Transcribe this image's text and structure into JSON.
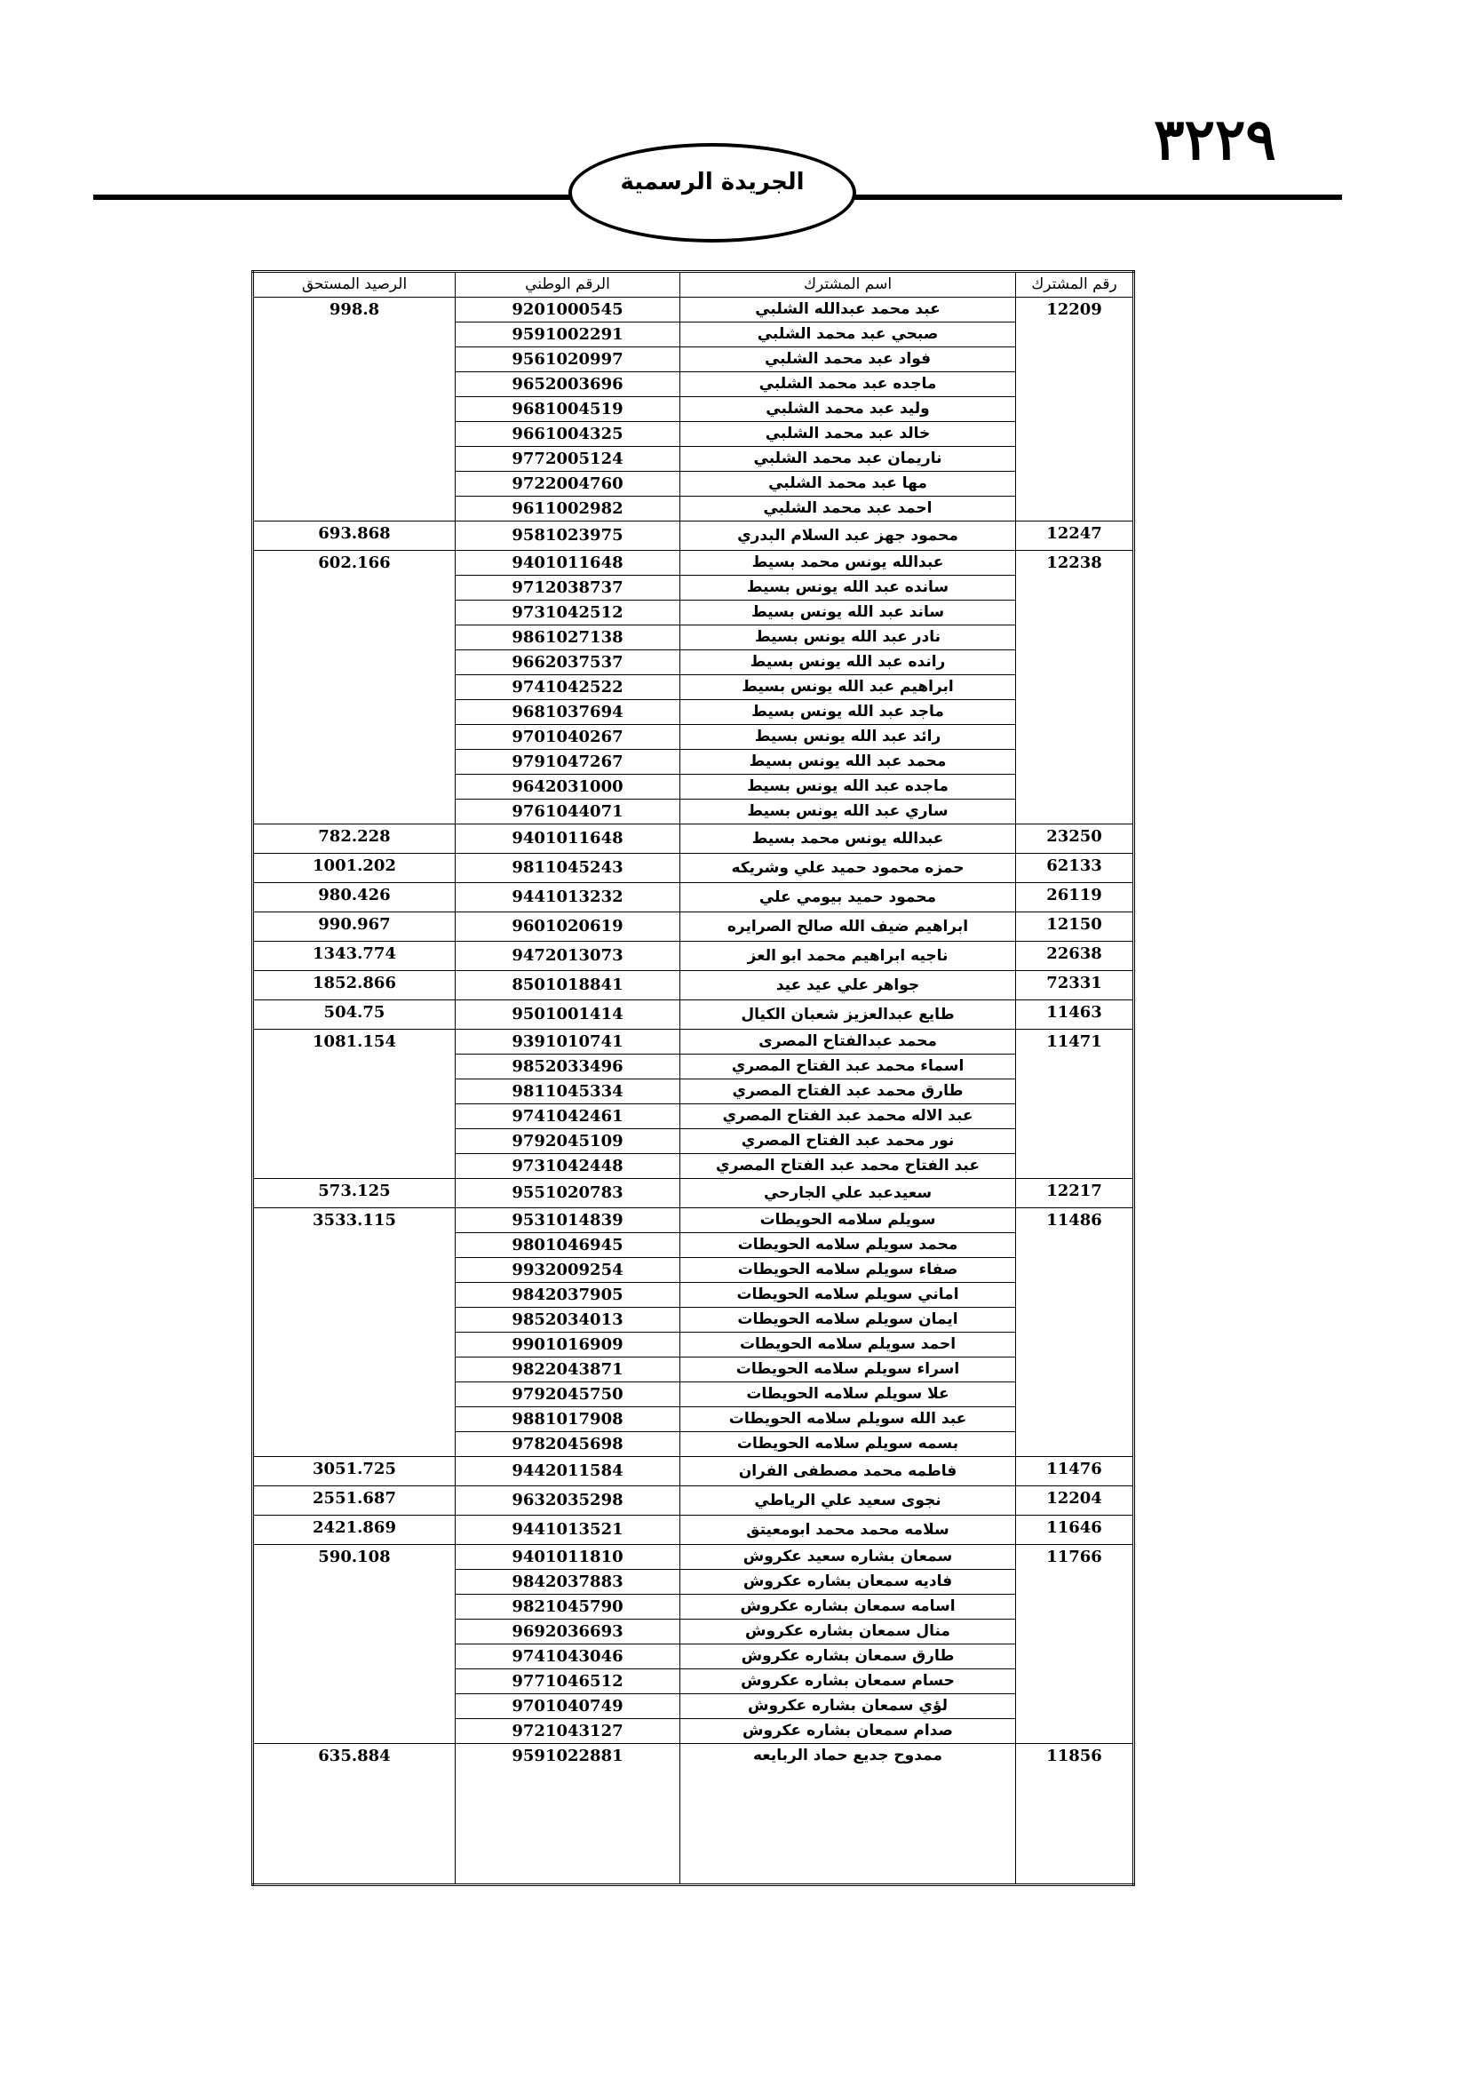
{
  "header": {
    "page_number": "٣٢٢٩",
    "title": "الجريدة الرسمية"
  },
  "table": {
    "header": [
      "رقم المشترك",
      "اسم المشترك",
      "الرقم الوطني",
      "الرصيد المستحق"
    ],
    "groups": [
      {
        "subscriber_no": "12209",
        "balance": "998.8",
        "members": [
          {
            "name": "عبد محمد عبدالله الشلبي",
            "national_id": "9201000545"
          },
          {
            "name": "صبحي عبد محمد الشلبي",
            "national_id": "9591002291"
          },
          {
            "name": "فواد عبد محمد الشلبي",
            "national_id": "9561020997"
          },
          {
            "name": "ماجده عبد محمد الشلبي",
            "national_id": "9652003696"
          },
          {
            "name": "وليد عبد محمد الشلبي",
            "national_id": "9681004519"
          },
          {
            "name": "خالد عبد محمد الشلبي",
            "national_id": "9661004325"
          },
          {
            "name": "ناريمان عبد محمد الشلبي",
            "national_id": "9772005124"
          },
          {
            "name": "مها عبد محمد الشلبي",
            "national_id": "9722004760"
          },
          {
            "name": "احمد عبد محمد الشلبي",
            "national_id": "9611002982"
          }
        ]
      },
      {
        "subscriber_no": "12247",
        "balance": "693.868",
        "members": [
          {
            "name": "محمود جهز عبد السلام البدري",
            "national_id": "9581023975"
          }
        ]
      },
      {
        "subscriber_no": "12238",
        "balance": "602.166",
        "members": [
          {
            "name": "عبدالله يونس محمد بسيط",
            "national_id": "9401011648"
          },
          {
            "name": "سانده عبد الله يونس بسيط",
            "national_id": "9712038737"
          },
          {
            "name": "ساند عبد الله يونس بسيط",
            "national_id": "9731042512"
          },
          {
            "name": "نادر عبد الله يونس بسيط",
            "national_id": "9861027138"
          },
          {
            "name": "رانده عبد الله يونس بسيط",
            "national_id": "9662037537"
          },
          {
            "name": "ابراهيم عبد الله يونس بسيط",
            "national_id": "9741042522"
          },
          {
            "name": "ماجد عبد الله يونس بسيط",
            "national_id": "9681037694"
          },
          {
            "name": "رائد عبد الله يونس بسيط",
            "national_id": "9701040267"
          },
          {
            "name": "محمد عبد الله يونس بسيط",
            "national_id": "9791047267"
          },
          {
            "name": "ماجده عبد الله يونس بسيط",
            "national_id": "9642031000"
          },
          {
            "name": "ساري عبد الله يونس بسيط",
            "national_id": "9761044071"
          }
        ]
      },
      {
        "subscriber_no": "23250",
        "balance": "782.228",
        "members": [
          {
            "name": "عبدالله يونس محمد بسيط",
            "national_id": "9401011648"
          }
        ]
      },
      {
        "subscriber_no": "62133",
        "balance": "1001.202",
        "members": [
          {
            "name": "حمزه محمود حميد علي وشريكه",
            "national_id": "9811045243"
          }
        ]
      },
      {
        "subscriber_no": "26119",
        "balance": "980.426",
        "members": [
          {
            "name": "محمود حميد بيومي علي",
            "national_id": "9441013232"
          }
        ]
      },
      {
        "subscriber_no": "12150",
        "balance": "990.967",
        "members": [
          {
            "name": "ابراهيم ضيف الله صالح الصرايره",
            "national_id": "9601020619"
          }
        ]
      },
      {
        "subscriber_no": "22638",
        "balance": "1343.774",
        "members": [
          {
            "name": "ناجيه ابراهيم محمد ابو العز",
            "national_id": "9472013073"
          }
        ]
      },
      {
        "subscriber_no": "72331",
        "balance": "1852.866",
        "members": [
          {
            "name": "جواهر علي عيد عيد",
            "national_id": "8501018841"
          }
        ]
      },
      {
        "subscriber_no": "11463",
        "balance": "504.75",
        "members": [
          {
            "name": "طايع عبدالعزيز شعبان الكيال",
            "national_id": "9501001414"
          }
        ]
      },
      {
        "subscriber_no": "11471",
        "balance": "1081.154",
        "members": [
          {
            "name": "محمد عبدالفتاح المصرى",
            "national_id": "9391010741"
          },
          {
            "name": "اسماء محمد عبد الفتاح المصري",
            "national_id": "9852033496"
          },
          {
            "name": "طارق محمد عبد الفتاح المصري",
            "national_id": "9811045334"
          },
          {
            "name": "عبد الاله محمد عبد الفتاح المصري",
            "national_id": "9741042461"
          },
          {
            "name": "نور محمد عبد الفتاح المصري",
            "national_id": "9792045109"
          },
          {
            "name": "عبد الفتاح محمد عبد الفتاح المصري",
            "national_id": "9731042448"
          }
        ]
      },
      {
        "subscriber_no": "12217",
        "balance": "573.125",
        "members": [
          {
            "name": "سعيدعبد علي الجارحي",
            "national_id": "9551020783"
          }
        ]
      },
      {
        "subscriber_no": "11486",
        "balance": "3533.115",
        "members": [
          {
            "name": "سويلم سلامه الحويطات",
            "national_id": "9531014839"
          },
          {
            "name": "محمد سويلم سلامه الحويطات",
            "national_id": "9801046945"
          },
          {
            "name": "صفاء سويلم سلامه الحويطات",
            "national_id": "9932009254"
          },
          {
            "name": "اماني سويلم سلامه الحويطات",
            "national_id": "9842037905"
          },
          {
            "name": "ايمان سويلم سلامه الحويطات",
            "national_id": "9852034013"
          },
          {
            "name": "احمد سويلم سلامه الحويطات",
            "national_id": "9901016909"
          },
          {
            "name": "اسراء سويلم سلامه الحويطات",
            "national_id": "9822043871"
          },
          {
            "name": "علا سويلم سلامه الحويطات",
            "national_id": "9792045750"
          },
          {
            "name": "عبد الله سويلم سلامه الحويطات",
            "national_id": "9881017908"
          },
          {
            "name": "بسمه سويلم سلامه الحويطات",
            "national_id": "9782045698"
          }
        ]
      },
      {
        "subscriber_no": "11476",
        "balance": "3051.725",
        "members": [
          {
            "name": "فاطمه محمد مصطفى الفران",
            "national_id": "9442011584"
          }
        ]
      },
      {
        "subscriber_no": "12204",
        "balance": "2551.687",
        "members": [
          {
            "name": "نجوى سعيد علي الرياطي",
            "national_id": "9632035298"
          }
        ]
      },
      {
        "subscriber_no": "11646",
        "balance": "2421.869",
        "members": [
          {
            "name": "سلامه محمد محمد ابومعيتق",
            "national_id": "9441013521"
          }
        ]
      },
      {
        "subscriber_no": "11766",
        "balance": "590.108",
        "members": [
          {
            "name": "سمعان بشاره سعيد عكروش",
            "national_id": "9401011810"
          },
          {
            "name": "فاديه سمعان بشاره عكروش",
            "national_id": "9842037883"
          },
          {
            "name": "اسامه سمعان بشاره عكروش",
            "national_id": "9821045790"
          },
          {
            "name": "منال سمعان بشاره عكروش",
            "national_id": "9692036693"
          },
          {
            "name": "طارق سمعان بشاره عكروش",
            "national_id": "9741043046"
          },
          {
            "name": "حسام سمعان بشاره عكروش",
            "national_id": "9771046512"
          },
          {
            "name": "لؤي سمعان بشاره عكروش",
            "national_id": "9701040749"
          },
          {
            "name": "صدام سمعان بشاره عكروش",
            "national_id": "9721043127"
          }
        ]
      },
      {
        "subscriber_no": "11856",
        "balance": "635.884",
        "members": [
          {
            "name": "ممدوح جديع حماد الربايعه",
            "national_id": "9591022881"
          }
        ]
      }
    ]
  }
}
